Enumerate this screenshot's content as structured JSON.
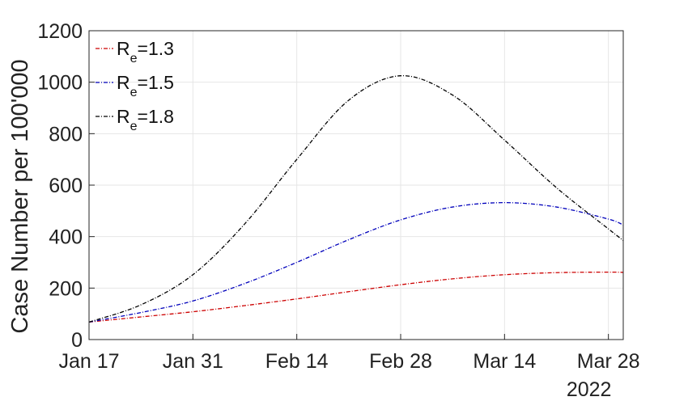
{
  "chart_data": {
    "type": "line",
    "title": "",
    "xlabel": "",
    "ylabel": "Case Number per 100'000",
    "x_tick_labels": [
      "Jan 17",
      "Jan 31",
      "Feb 14",
      "Feb 28",
      "Mar 14",
      "Mar 28"
    ],
    "x_tick_dates": [
      "2022-01-17",
      "2022-01-31",
      "2022-02-14",
      "2022-02-28",
      "2022-03-14",
      "2022-03-28"
    ],
    "x_secondary_label": "2022",
    "xlim": [
      "2022-01-17",
      "2022-03-30"
    ],
    "ylim": [
      0,
      1200
    ],
    "y_ticks": [
      0,
      200,
      400,
      600,
      800,
      1000,
      1200
    ],
    "grid": true,
    "legend_position": "top-left",
    "x": [
      "2022-01-17",
      "2022-01-24",
      "2022-01-31",
      "2022-02-07",
      "2022-02-14",
      "2022-02-21",
      "2022-02-28",
      "2022-03-07",
      "2022-03-14",
      "2022-03-21",
      "2022-03-28",
      "2022-03-30"
    ],
    "series": [
      {
        "name_main": "R",
        "name_sub": "e",
        "name_value": "=1.3",
        "color": "#cc0000",
        "values": [
          68,
          88,
          108,
          132,
          158,
          186,
          213,
          236,
          252,
          260,
          262,
          261
        ]
      },
      {
        "name_main": "R",
        "name_sub": "e",
        "name_value": "=1.5",
        "color": "#0000bb",
        "values": [
          68,
          105,
          150,
          218,
          300,
          388,
          465,
          515,
          532,
          515,
          468,
          445
        ]
      },
      {
        "name_main": "R",
        "name_sub": "e",
        "name_value": "=1.8",
        "color": "#000000",
        "values": [
          68,
          135,
          252,
          450,
          700,
          930,
          1025,
          950,
          775,
          590,
          430,
          385
        ]
      }
    ]
  }
}
